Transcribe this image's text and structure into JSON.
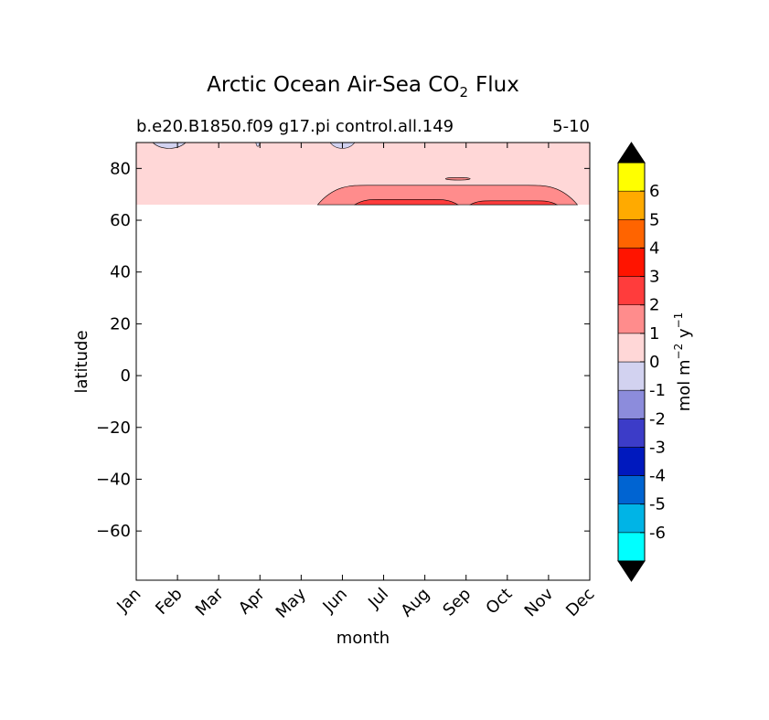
{
  "title_main": "Arctic Ocean Air-Sea CO",
  "title_sub": "2",
  "title_tail": "Flux",
  "subtitle_left": "b.e20.B1850.f09 g17.pi control.all.149",
  "subtitle_right": "5-10",
  "chart_data": {
    "type": "heatmap",
    "xlabel": "month",
    "ylabel": "latitude",
    "x_categories": [
      "Jan",
      "Feb",
      "Mar",
      "Apr",
      "May",
      "Jun",
      "Jul",
      "Aug",
      "Sep",
      "Oct",
      "Nov",
      "Dec"
    ],
    "xlim": [
      1,
      12
    ],
    "ylim": [
      -79,
      90
    ],
    "yticks": [
      -60,
      -40,
      -20,
      0,
      20,
      40,
      60,
      80
    ],
    "ytick_labels": [
      "−60",
      "−40",
      "−20",
      "0",
      "20",
      "40",
      "60",
      "80"
    ],
    "data_lat_range": [
      66,
      90
    ],
    "background_level": "0 to 1",
    "contours": [
      {
        "level": "0 to 1",
        "region": "all months, 66 to 90",
        "lat_min": 66,
        "lat_max": 90
      },
      {
        "level": "-1 to 0",
        "months": [
          1.4,
          2.2
        ],
        "lat_min": 87,
        "lat_max": 90
      },
      {
        "level": "-1 to 0",
        "months": [
          3.9,
          4.0
        ],
        "lat_min": 88,
        "lat_max": 90
      },
      {
        "level": "-1 to 0",
        "months": [
          5.7,
          6.3
        ],
        "lat_min": 87,
        "lat_max": 90
      },
      {
        "level": "1 to 2",
        "months": [
          5.4,
          11.7
        ],
        "lat_min": 66,
        "lat_max": 73.5
      },
      {
        "level": "1 to 2",
        "months": [
          8.5,
          9.1
        ],
        "lat_min": 75.5,
        "lat_max": 76.5
      },
      {
        "level": "2 to 3",
        "months": [
          6.3,
          8.8
        ],
        "lat_min": 66,
        "lat_max": 68
      },
      {
        "level": "2 to 3",
        "months": [
          9.1,
          11.2
        ],
        "lat_min": 66,
        "lat_max": 67.5
      }
    ],
    "colorbar": {
      "label": "mol m",
      "label_sup1": "−2",
      "label_mid": " y",
      "label_sup2": "−1",
      "levels": [
        -7,
        -6,
        -5,
        -4,
        -3,
        -2,
        -1,
        0,
        1,
        2,
        3,
        4,
        5,
        6,
        7
      ],
      "tick_labels": [
        "-6",
        "-5",
        "-4",
        "-3",
        "-2",
        "-1",
        "0",
        "1",
        "2",
        "3",
        "4",
        "5",
        "6"
      ],
      "colors": [
        "#00ffff",
        "#00b4e6",
        "#0064d2",
        "#0019be",
        "#3c3cc8",
        "#8c8cdc",
        "#d2d2f0",
        "#ffd7d7",
        "#ff8c8c",
        "#ff3c3c",
        "#ff1400",
        "#ff6400",
        "#ffaa00",
        "#ffff00"
      ],
      "extend_colors": [
        "#000000",
        "#000000"
      ]
    }
  }
}
